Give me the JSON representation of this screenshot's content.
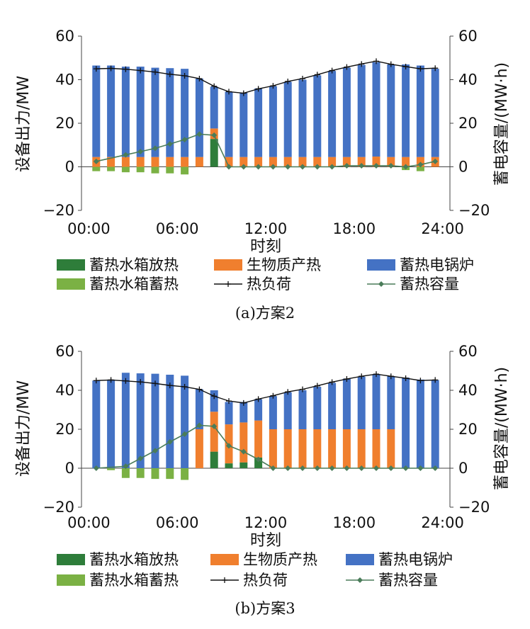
{
  "legend": {
    "discharge": "蓄热水箱放热",
    "biomass": "生物质产热",
    "boiler": "蓄热电锅炉",
    "charge": "蓄热水箱蓄热",
    "load": "热负荷",
    "storage": "蓄热容量"
  },
  "colors": {
    "discharge": "#2e7d3a",
    "biomass": "#f07f2e",
    "boiler": "#4472c4",
    "charge": "#7bb144",
    "load": "#111111",
    "storage": "#4a7c59",
    "axis": "#444444"
  },
  "chart_data": [
    {
      "type": "bar",
      "caption": "(a)方案2",
      "xlabel": "时刻",
      "ylabel": "设备出力/MW",
      "y2label": "蓄电容量/(MW·h)",
      "xticks": [
        "00:00",
        "06:00",
        "12:00",
        "18:00",
        "24:00"
      ],
      "yticks": [
        "60",
        "40",
        "20",
        "0",
        "−20"
      ],
      "y2ticks": [
        "60",
        "40",
        "20",
        "0",
        "−20"
      ],
      "ylim": [
        -20,
        60
      ],
      "xlim": [
        0,
        25
      ],
      "hours": [
        1,
        2,
        3,
        4,
        5,
        6,
        7,
        8,
        9,
        10,
        11,
        12,
        13,
        14,
        15,
        16,
        17,
        18,
        19,
        20,
        21,
        22,
        23,
        24
      ],
      "series": {
        "discharge": [
          0,
          0,
          0,
          0,
          0,
          0,
          0,
          0,
          12.8,
          0,
          0,
          0,
          0,
          0,
          0,
          0,
          0,
          0,
          0,
          0,
          0,
          0,
          0,
          0
        ],
        "biomass": [
          4.5,
          4.5,
          4.5,
          4.5,
          4.5,
          4.5,
          4.5,
          4.5,
          4.8,
          4.5,
          4.5,
          4.5,
          4.5,
          4.5,
          4.5,
          4.5,
          4.5,
          4.5,
          4.5,
          4.7,
          4.5,
          4.5,
          4.5,
          4.5
        ],
        "boiler": [
          42,
          42,
          41.5,
          41.5,
          41,
          40.8,
          40.5,
          36,
          19.2,
          30,
          29.5,
          31.5,
          32.5,
          34.5,
          35.5,
          37.5,
          39.5,
          41,
          42.3,
          43.3,
          42.5,
          42.5,
          42,
          40.5
        ],
        "charge": [
          -2,
          -2,
          -2.5,
          -2.5,
          -3,
          -3,
          -3.5,
          0,
          0,
          0,
          0,
          0,
          0,
          0,
          0,
          0,
          0,
          0,
          0,
          0,
          0,
          -1.5,
          -2,
          0
        ],
        "load": [
          45,
          45.2,
          44.8,
          44.2,
          43.5,
          42.5,
          41.8,
          40.5,
          37,
          34.5,
          33.8,
          35.8,
          37.2,
          39.2,
          40.5,
          42.3,
          44.2,
          45.8,
          47.2,
          48.5,
          47.1,
          46,
          45,
          45.3
        ],
        "storage": [
          2.5,
          null,
          5.5,
          7,
          8.5,
          10.5,
          12.5,
          15,
          14.5,
          0,
          0,
          0,
          0,
          0,
          0,
          0,
          0,
          0.5,
          0.5,
          0.5,
          0.5,
          0,
          1,
          2.5
        ]
      }
    },
    {
      "type": "bar",
      "caption": "(b)方案3",
      "xlabel": "时刻",
      "ylabel": "设备出力/MW",
      "y2label": "蓄电容量/(MW·h)",
      "xticks": [
        "00:00",
        "06:00",
        "12:00",
        "18:00",
        "24:00"
      ],
      "yticks": [
        "60",
        "40",
        "20",
        "0",
        "−20"
      ],
      "y2ticks": [
        "60",
        "40",
        "20",
        "0",
        "−20"
      ],
      "ylim": [
        -20,
        60
      ],
      "xlim": [
        0,
        25
      ],
      "hours": [
        1,
        2,
        3,
        4,
        5,
        6,
        7,
        8,
        9,
        10,
        11,
        12,
        13,
        14,
        15,
        16,
        17,
        18,
        19,
        20,
        21,
        22,
        23,
        24
      ],
      "series": {
        "discharge": [
          0,
          0,
          0,
          0,
          0,
          0,
          0,
          0,
          8.5,
          2.5,
          3,
          5.5,
          0,
          0,
          0,
          0,
          0,
          0,
          0,
          0,
          0,
          0,
          0,
          0
        ],
        "biomass": [
          0,
          0,
          0,
          0,
          0,
          0,
          0,
          20,
          20.5,
          20,
          20.5,
          19,
          20,
          20,
          20,
          20,
          20,
          20,
          20,
          20,
          20,
          0,
          0,
          0
        ],
        "boiler": [
          45,
          45.5,
          49,
          48.7,
          48.5,
          48,
          47.5,
          20.5,
          11,
          11.5,
          10.5,
          11,
          17,
          19,
          20,
          21.8,
          23.8,
          26,
          27,
          28.3,
          27.3,
          46.5,
          45.5,
          45.3
        ],
        "charge": [
          0,
          -1,
          -5,
          -5,
          -5.5,
          -5.5,
          -6,
          0,
          0,
          0,
          0,
          0,
          0,
          0,
          0,
          0,
          0,
          0,
          0,
          0,
          0,
          0,
          0,
          0
        ],
        "load": [
          45,
          45.3,
          44.8,
          44.3,
          43.5,
          42.5,
          41.8,
          40.5,
          37,
          34.5,
          33.5,
          35.5,
          37.2,
          39.2,
          40.5,
          42.3,
          44.2,
          45.8,
          47.2,
          48.3,
          47.2,
          46.2,
          45,
          45.3
        ],
        "storage": [
          0,
          null,
          1,
          5,
          9,
          13.5,
          17.5,
          22,
          21.5,
          11.5,
          8.5,
          4.5,
          0,
          0,
          0,
          0,
          0,
          0,
          0,
          0,
          0,
          0,
          0,
          0
        ]
      }
    }
  ]
}
